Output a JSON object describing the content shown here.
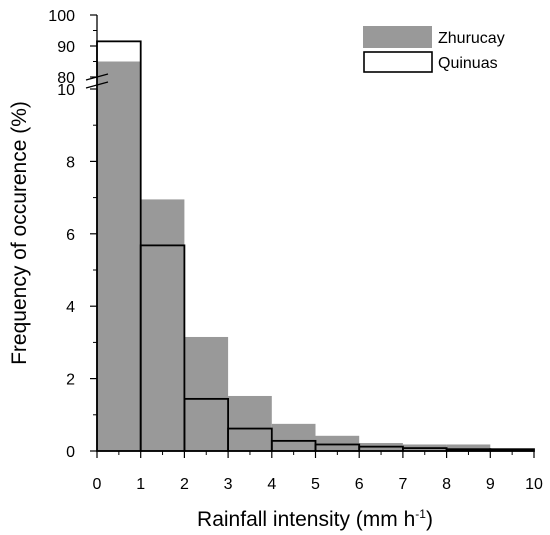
{
  "chart_data": {
    "type": "bar",
    "bin_edges": [
      0,
      1,
      2,
      3,
      4,
      5,
      6,
      7,
      8,
      9,
      10
    ],
    "series": [
      {
        "name": "Zhurucay",
        "style": "filled",
        "color": "#999999",
        "values": [
          85,
          6.95,
          3.15,
          1.52,
          0.75,
          0.42,
          0.22,
          0.18,
          0.18,
          0.05
        ]
      },
      {
        "name": "Quinuas",
        "style": "outline",
        "color": "#000000",
        "values": [
          91.5,
          5.68,
          1.44,
          0.62,
          0.28,
          0.18,
          0.12,
          0.08,
          0.05,
          0.05
        ]
      }
    ],
    "xlabel_main": "Rainfall intensity (mm h",
    "xlabel_sup": "-1",
    "xlabel_end": ")",
    "ylabel": "Frequency of occurence (%)",
    "x_ticks": [
      "0",
      "1",
      "2",
      "3",
      "4",
      "5",
      "6",
      "7",
      "8",
      "9",
      "10"
    ],
    "y_ticks_lower": [
      "0",
      "2",
      "4",
      "6",
      "8",
      "10"
    ],
    "y_ticks_upper": [
      "80",
      "90",
      "100"
    ],
    "xlim": [
      0,
      10
    ],
    "ylim_lower": [
      0,
      10
    ],
    "ylim_upper": [
      80,
      100
    ],
    "axis_break": true,
    "grid": false,
    "legend_position": "top-right"
  }
}
